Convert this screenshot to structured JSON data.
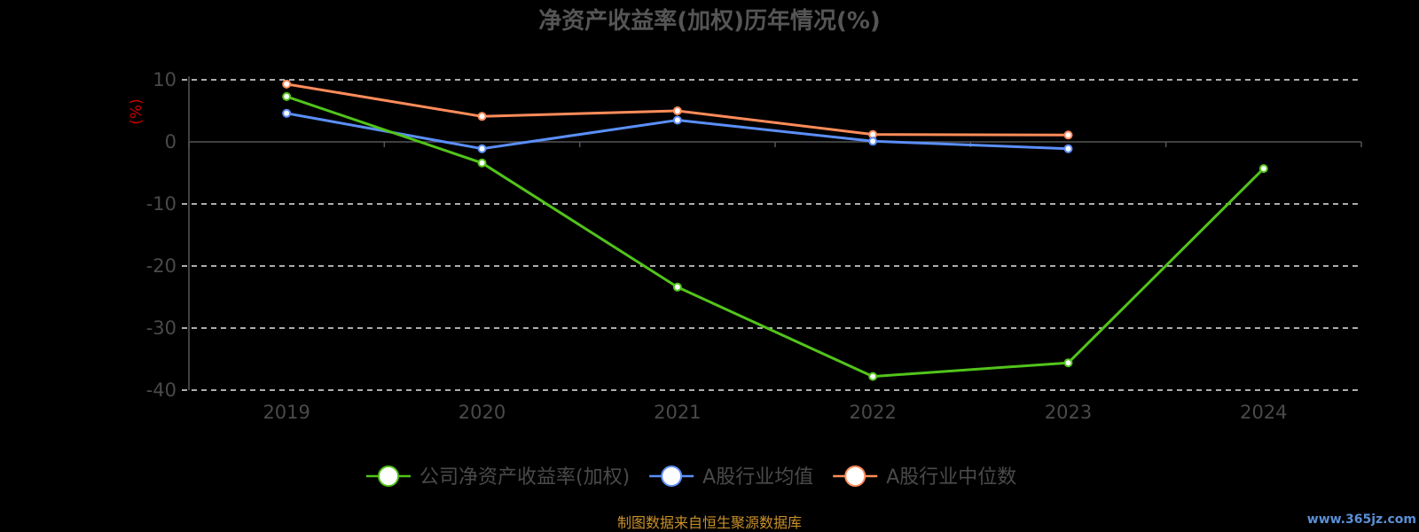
{
  "chart_data": {
    "type": "line",
    "title": "净资产收益率(加权)历年情况(%)",
    "ylabel": "(%)",
    "categories": [
      "2019",
      "2020",
      "2021",
      "2022",
      "2023",
      "2024"
    ],
    "ylim": [
      -40,
      10
    ],
    "yticks": [
      10,
      0,
      -10,
      -20,
      -30,
      -40
    ],
    "grid": true,
    "legend_position": "bottom",
    "series": [
      {
        "name": "公司净资产收益率(加权)",
        "color": "#52c41a",
        "values": [
          7.3,
          -3.4,
          -23.4,
          -37.8,
          -35.6,
          -4.3
        ]
      },
      {
        "name": "A股行业均值",
        "color": "#5b8ff9",
        "values": [
          4.6,
          -1.1,
          3.5,
          0.1,
          -1.1,
          null
        ]
      },
      {
        "name": "A股行业中位数",
        "color": "#ff8c5a",
        "values": [
          9.3,
          4.1,
          5.0,
          1.2,
          1.1,
          null
        ]
      }
    ]
  },
  "footer": {
    "source": "制图数据来自恒生聚源数据库",
    "watermark": "www.365jz.com"
  }
}
